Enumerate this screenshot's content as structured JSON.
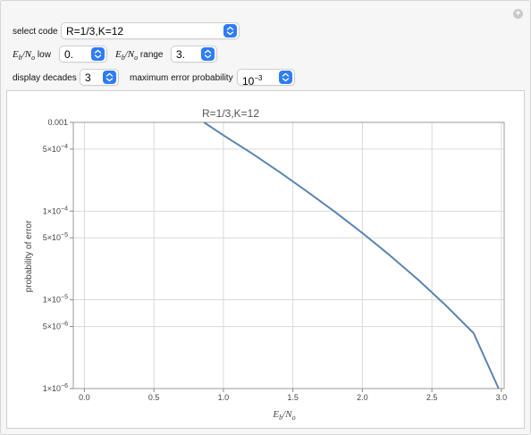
{
  "controls": {
    "select_code_label": "select code",
    "select_code_value": "R=1/3,K=12",
    "ebno_low_label_sub": "o",
    "ebno_low_label_sub_b": "b",
    "ebno_low_label_text": "low",
    "ebno_low_value": "0.",
    "ebno_range_label_text": "range",
    "ebno_range_value": "3.",
    "display_decades_label": "display decades",
    "display_decades_value": "3",
    "max_error_label": "maximum error probability",
    "max_error_value_base": "10",
    "max_error_value_exp": "−3"
  },
  "colors": {
    "accent": "#2f7cf6",
    "curve": "#5b84b1",
    "grid": "#d9d9d9"
  },
  "chart_data": {
    "type": "line",
    "title": "R=1/3,K=12",
    "xlabel_main": "E",
    "xlabel_sub_b": "b",
    "xlabel_mid": "/N",
    "xlabel_sub_o": "o",
    "ylabel": "probability of error",
    "xlim": [
      0.0,
      3.0
    ],
    "ylim": [
      1e-06,
      0.001
    ],
    "y_scale": "log",
    "grid": true,
    "x_ticks": [
      {
        "v": 0.0,
        "label": "0.0"
      },
      {
        "v": 0.5,
        "label": "0.5"
      },
      {
        "v": 1.0,
        "label": "1.0"
      },
      {
        "v": 1.5,
        "label": "1.5"
      },
      {
        "v": 2.0,
        "label": "2.0"
      },
      {
        "v": 2.5,
        "label": "2.5"
      },
      {
        "v": 3.0,
        "label": "3.0"
      }
    ],
    "y_ticks": [
      {
        "v": 0.001,
        "mant": "0.001",
        "exp": ""
      },
      {
        "v": 0.0005,
        "mant": "5×10",
        "exp": "−4"
      },
      {
        "v": 0.0001,
        "mant": "1×10",
        "exp": "−4"
      },
      {
        "v": 5e-05,
        "mant": "5×10",
        "exp": "−5"
      },
      {
        "v": 1e-05,
        "mant": "1×10",
        "exp": "−5"
      },
      {
        "v": 5e-06,
        "mant": "5×10",
        "exp": "−6"
      },
      {
        "v": 1e-06,
        "mant": "1×10",
        "exp": "−6"
      }
    ],
    "series": [
      {
        "x": [
          0.86,
          1.0,
          1.2,
          1.4,
          1.6,
          1.8,
          2.0,
          2.2,
          2.4,
          2.6,
          2.8,
          2.98
        ],
        "y": [
          0.001,
          0.000716,
          0.000453,
          0.000278,
          0.000167,
          9.86e-05,
          5.66e-05,
          3.15e-05,
          1.69e-05,
          8.65e-06,
          4.21e-06,
          1e-06
        ]
      }
    ]
  }
}
